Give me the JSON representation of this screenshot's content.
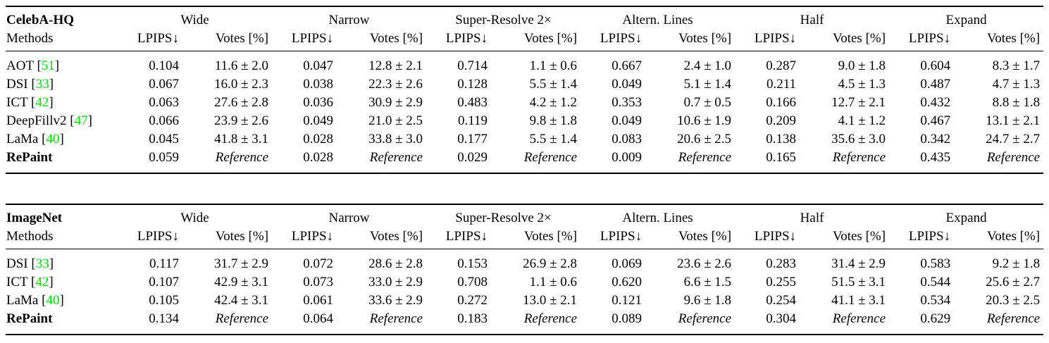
{
  "colors": {
    "citation_green": "#00e000",
    "text": "#000000",
    "rule": "#000000",
    "background": "#ffffff"
  },
  "columns": {
    "group_headers": [
      "Wide",
      "Narrow",
      "Super-Resolve 2×",
      "Altern. Lines",
      "Half",
      "Expand"
    ],
    "metric_headers": [
      "LPIPS↓",
      "Votes [%]"
    ]
  },
  "chart_data": [
    {
      "type": "table",
      "title": "CelebA-HQ",
      "row_header": "Methods",
      "column_groups": [
        "Wide",
        "Narrow",
        "Super-Resolve 2×",
        "Altern. Lines",
        "Half",
        "Expand"
      ],
      "metrics_per_group": [
        "LPIPS↓",
        "Votes [%]"
      ],
      "rows": [
        {
          "method": "AOT",
          "ref": "51",
          "bold": false,
          "values": [
            "0.104",
            "11.6 ± 2.0",
            "0.047",
            "12.8 ± 2.1",
            "0.714",
            "1.1 ± 0.6",
            "0.667",
            "2.4 ± 1.0",
            "0.287",
            "9.0 ± 1.8",
            "0.604",
            "8.3 ± 1.7"
          ]
        },
        {
          "method": "DSI",
          "ref": "33",
          "bold": false,
          "values": [
            "0.067",
            "16.0 ± 2.3",
            "0.038",
            "22.3 ± 2.6",
            "0.128",
            "5.5 ± 1.4",
            "0.049",
            "5.1 ± 1.4",
            "0.211",
            "4.5 ± 1.3",
            "0.487",
            "4.7 ± 1.3"
          ]
        },
        {
          "method": "ICT",
          "ref": "42",
          "bold": false,
          "values": [
            "0.063",
            "27.6 ± 2.8",
            "0.036",
            "30.9 ± 2.9",
            "0.483",
            "4.2 ± 1.2",
            "0.353",
            "0.7 ± 0.5",
            "0.166",
            "12.7 ± 2.1",
            "0.432",
            "8.8 ± 1.8"
          ]
        },
        {
          "method": "DeepFillv2",
          "ref": "47",
          "bold": false,
          "values": [
            "0.066",
            "23.9 ± 2.6",
            "0.049",
            "21.0 ± 2.5",
            "0.119",
            "9.8 ± 1.8",
            "0.049",
            "10.6 ± 1.9",
            "0.209",
            "4.1 ± 1.2",
            "0.467",
            "13.1 ± 2.1"
          ]
        },
        {
          "method": "LaMa",
          "ref": "40",
          "bold": false,
          "values": [
            "0.045",
            "41.8 ± 3.1",
            "0.028",
            "33.8 ± 3.0",
            "0.177",
            "5.5 ± 1.4",
            "0.083",
            "20.6 ± 2.5",
            "0.138",
            "35.6 ± 3.0",
            "0.342",
            "24.7 ± 2.7"
          ]
        },
        {
          "method": "RePaint",
          "ref": null,
          "bold": true,
          "values": [
            "0.059",
            "Reference",
            "0.028",
            "Reference",
            "0.029",
            "Reference",
            "0.009",
            "Reference",
            "0.165",
            "Reference",
            "0.435",
            "Reference"
          ]
        }
      ]
    },
    {
      "type": "table",
      "title": "ImageNet",
      "row_header": "Methods",
      "column_groups": [
        "Wide",
        "Narrow",
        "Super-Resolve 2×",
        "Altern. Lines",
        "Half",
        "Expand"
      ],
      "metrics_per_group": [
        "LPIPS↓",
        "Votes [%]"
      ],
      "rows": [
        {
          "method": "DSI",
          "ref": "33",
          "bold": false,
          "values": [
            "0.117",
            "31.7 ± 2.9",
            "0.072",
            "28.6 ± 2.8",
            "0.153",
            "26.9 ± 2.8",
            "0.069",
            "23.6 ± 2.6",
            "0.283",
            "31.4 ± 2.9",
            "0.583",
            "9.2 ± 1.8"
          ]
        },
        {
          "method": "ICT",
          "ref": "42",
          "bold": false,
          "values": [
            "0.107",
            "42.9 ± 3.1",
            "0.073",
            "33.0 ± 2.9",
            "0.708",
            "1.1 ± 0.6",
            "0.620",
            "6.6 ± 1.5",
            "0.255",
            "51.5 ± 3.1",
            "0.544",
            "25.6 ± 2.7"
          ]
        },
        {
          "method": "LaMa",
          "ref": "40",
          "bold": false,
          "values": [
            "0.105",
            "42.4 ± 3.1",
            "0.061",
            "33.6 ± 2.9",
            "0.272",
            "13.0 ± 2.1",
            "0.121",
            "9.6 ± 1.8",
            "0.254",
            "41.1 ± 3.1",
            "0.534",
            "20.3 ± 2.5"
          ]
        },
        {
          "method": "RePaint",
          "ref": null,
          "bold": true,
          "values": [
            "0.134",
            "Reference",
            "0.064",
            "Reference",
            "0.183",
            "Reference",
            "0.089",
            "Reference",
            "0.304",
            "Reference",
            "0.629",
            "Reference"
          ]
        }
      ]
    }
  ],
  "misc": {
    "reference_label": "Reference",
    "bracket_open": "[",
    "bracket_close": "]"
  }
}
